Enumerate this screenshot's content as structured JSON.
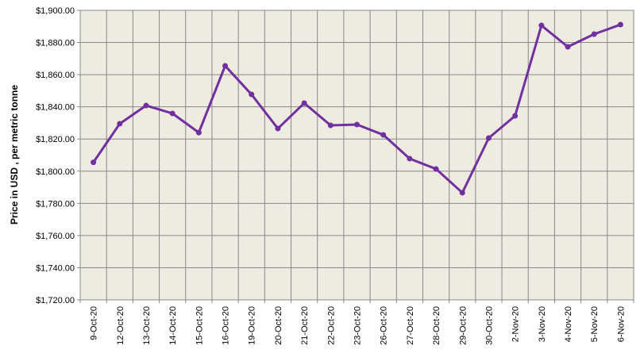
{
  "chart_data": {
    "type": "line",
    "y_axis_label": "Price in USD , per metric tonne",
    "categories": [
      "9-Oct-20",
      "12-Oct-20",
      "13-Oct-20",
      "14-Oct-20",
      "15-Oct-20",
      "16-Oct-20",
      "19-Oct-20",
      "20-Oct-20",
      "21-Oct-20",
      "22-Oct-20",
      "23-Oct-20",
      "26-Oct-20",
      "27-Oct-20",
      "28-Oct-20",
      "29-Oct-20",
      "30-Oct-20",
      "2-Nov-20",
      "3-Nov-20",
      "4-Nov-20",
      "5-Nov-20",
      "6-Nov-20"
    ],
    "values": [
      1805.5,
      1829.5,
      1840.8,
      1835.9,
      1824,
      1865.5,
      1847.7,
      1826.5,
      1842.3,
      1828.5,
      1829,
      1822.6,
      1807.8,
      1801.4,
      1786.6,
      1820.6,
      1834.4,
      1890.6,
      1877.3,
      1885.2,
      1891.1
    ],
    "color": "#7030a0",
    "ylim": [
      1720,
      1900
    ],
    "yticks": [
      {
        "value": 1720,
        "label": "$1,720.00"
      },
      {
        "value": 1740,
        "label": "$1,740.00"
      },
      {
        "value": 1760,
        "label": "$1,760.00"
      },
      {
        "value": 1780,
        "label": "$1,780.00"
      },
      {
        "value": 1800,
        "label": "$1,800.00"
      },
      {
        "value": 1820,
        "label": "$1,820.00"
      },
      {
        "value": 1840,
        "label": "$1,840.00"
      },
      {
        "value": 1860,
        "label": "$1,860.00"
      },
      {
        "value": 1880,
        "label": "$1,880.00"
      },
      {
        "value": 1900,
        "label": "$1,900.00"
      }
    ],
    "grid": true
  }
}
